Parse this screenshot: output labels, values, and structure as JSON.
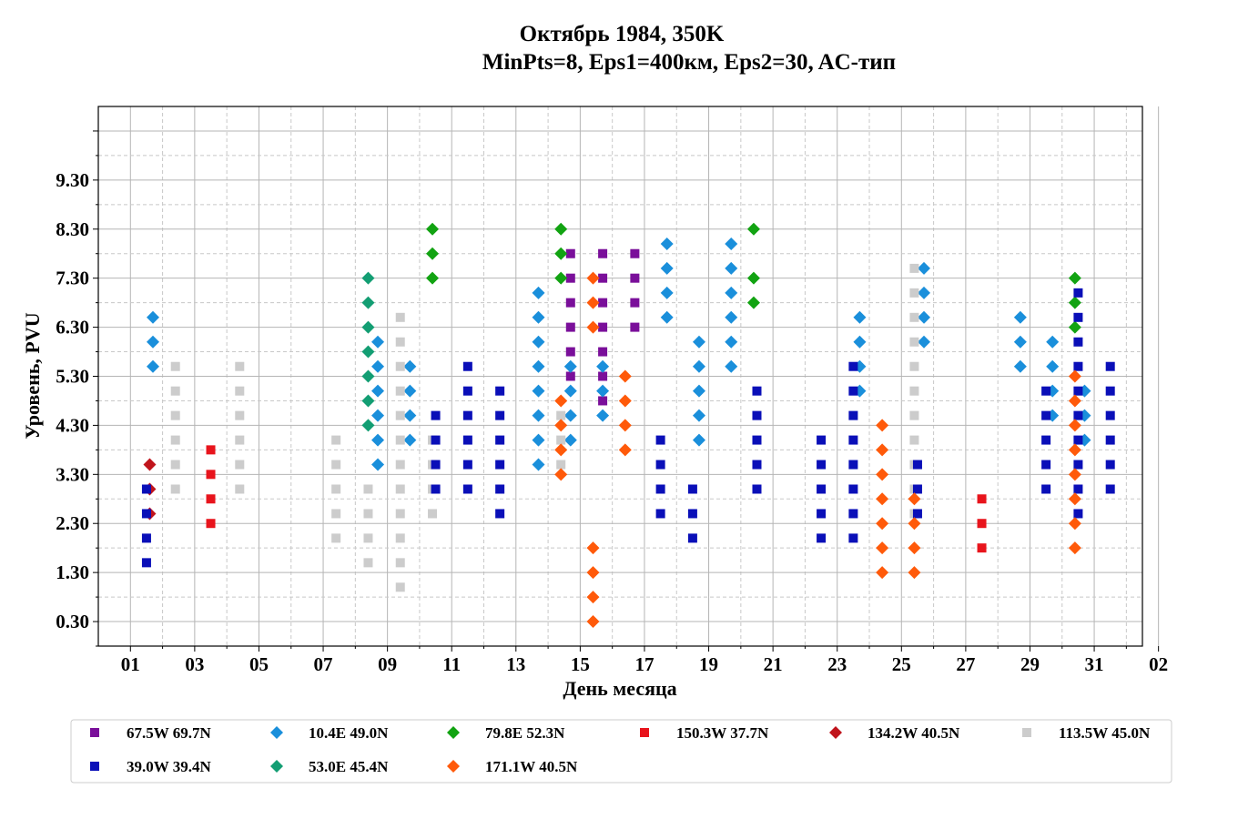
{
  "chart_data": {
    "type": "scatter",
    "title": "Октябрь 1984, 350K",
    "subtitle": "MinPts=8, Eps1=400км, Eps2=30, AC-тип",
    "xlabel": "День месяца",
    "ylabel": "Уровень, PVU",
    "x_ticks": [
      "01",
      "03",
      "05",
      "07",
      "09",
      "11",
      "13",
      "15",
      "17",
      "19",
      "21",
      "23",
      "25",
      "27",
      "29",
      "31",
      "02"
    ],
    "y_ticks": [
      "0.30",
      "1.30",
      "2.30",
      "3.30",
      "4.30",
      "5.30",
      "6.30",
      "7.30",
      "8.30",
      "9.30"
    ],
    "xlim": [
      0,
      32.5
    ],
    "ylim": [
      -0.2,
      10.8
    ],
    "grid": true,
    "legend_position": "bottom",
    "series": [
      {
        "name": "67.5W 69.7N",
        "color": "#7a0f9a",
        "marker": "square",
        "points": [
          [
            14.7,
            5.3
          ],
          [
            14.7,
            5.8
          ],
          [
            14.7,
            6.3
          ],
          [
            14.7,
            6.8
          ],
          [
            14.7,
            7.3
          ],
          [
            14.7,
            7.8
          ],
          [
            15.7,
            4.8
          ],
          [
            15.7,
            5.3
          ],
          [
            15.7,
            5.8
          ],
          [
            15.7,
            6.3
          ],
          [
            15.7,
            6.8
          ],
          [
            15.7,
            7.3
          ],
          [
            15.7,
            7.8
          ],
          [
            16.7,
            6.3
          ],
          [
            16.7,
            6.8
          ],
          [
            16.7,
            7.3
          ],
          [
            16.7,
            7.8
          ]
        ]
      },
      {
        "name": "10.4E 49.0N",
        "color": "#1a8fdb",
        "marker": "diamond",
        "points": [
          [
            1.7,
            5.5
          ],
          [
            1.7,
            6.0
          ],
          [
            1.7,
            6.5
          ],
          [
            8.7,
            3.5
          ],
          [
            8.7,
            4.0
          ],
          [
            8.7,
            4.5
          ],
          [
            8.7,
            5.0
          ],
          [
            8.7,
            5.5
          ],
          [
            8.7,
            6.0
          ],
          [
            9.7,
            4.0
          ],
          [
            9.7,
            4.5
          ],
          [
            9.7,
            5.0
          ],
          [
            9.7,
            5.5
          ],
          [
            13.7,
            3.5
          ],
          [
            13.7,
            4.0
          ],
          [
            13.7,
            4.5
          ],
          [
            13.7,
            5.0
          ],
          [
            13.7,
            5.5
          ],
          [
            13.7,
            6.0
          ],
          [
            13.7,
            6.5
          ],
          [
            13.7,
            7.0
          ],
          [
            14.7,
            4.0
          ],
          [
            14.7,
            4.5
          ],
          [
            14.7,
            5.0
          ],
          [
            14.7,
            5.5
          ],
          [
            15.7,
            4.5
          ],
          [
            15.7,
            5.0
          ],
          [
            15.7,
            5.5
          ],
          [
            17.7,
            6.5
          ],
          [
            17.7,
            7.0
          ],
          [
            17.7,
            7.5
          ],
          [
            17.7,
            8.0
          ],
          [
            18.7,
            4.0
          ],
          [
            18.7,
            4.5
          ],
          [
            18.7,
            5.0
          ],
          [
            18.7,
            5.5
          ],
          [
            18.7,
            6.0
          ],
          [
            19.7,
            5.5
          ],
          [
            19.7,
            6.0
          ],
          [
            19.7,
            6.5
          ],
          [
            19.7,
            7.0
          ],
          [
            19.7,
            7.5
          ],
          [
            19.7,
            8.0
          ],
          [
            23.7,
            5.0
          ],
          [
            23.7,
            5.5
          ],
          [
            23.7,
            6.0
          ],
          [
            23.7,
            6.5
          ],
          [
            25.7,
            6.0
          ],
          [
            25.7,
            6.5
          ],
          [
            25.7,
            7.0
          ],
          [
            25.7,
            7.5
          ],
          [
            28.7,
            5.5
          ],
          [
            28.7,
            6.0
          ],
          [
            28.7,
            6.5
          ],
          [
            29.7,
            4.5
          ],
          [
            29.7,
            5.0
          ],
          [
            29.7,
            5.5
          ],
          [
            29.7,
            6.0
          ],
          [
            30.7,
            4.0
          ],
          [
            30.7,
            4.5
          ],
          [
            30.7,
            5.0
          ]
        ]
      },
      {
        "name": "79.8E 52.3N",
        "color": "#12a312",
        "marker": "diamond",
        "points": [
          [
            10.4,
            7.3
          ],
          [
            10.4,
            7.8
          ],
          [
            10.4,
            8.3
          ],
          [
            14.4,
            7.3
          ],
          [
            14.4,
            7.8
          ],
          [
            14.4,
            8.3
          ],
          [
            20.4,
            6.8
          ],
          [
            20.4,
            7.3
          ],
          [
            20.4,
            8.3
          ],
          [
            30.4,
            6.3
          ],
          [
            30.4,
            6.8
          ],
          [
            30.4,
            7.3
          ]
        ]
      },
      {
        "name": "150.3W 37.7N",
        "color": "#e8141c",
        "marker": "square",
        "points": [
          [
            3.5,
            2.3
          ],
          [
            3.5,
            2.8
          ],
          [
            3.5,
            3.3
          ],
          [
            3.5,
            3.8
          ],
          [
            27.5,
            1.8
          ],
          [
            27.5,
            2.3
          ],
          [
            27.5,
            2.8
          ]
        ]
      },
      {
        "name": "134.2W 40.5N",
        "color": "#c0141c",
        "marker": "diamond",
        "points": [
          [
            1.6,
            2.5
          ],
          [
            1.6,
            3.0
          ],
          [
            1.6,
            3.5
          ]
        ]
      },
      {
        "name": "113.5W 45.0N",
        "color": "#cccccc",
        "marker": "square",
        "points": [
          [
            2.4,
            3.0
          ],
          [
            2.4,
            3.5
          ],
          [
            2.4,
            4.0
          ],
          [
            2.4,
            4.5
          ],
          [
            2.4,
            5.0
          ],
          [
            2.4,
            5.5
          ],
          [
            4.4,
            3.0
          ],
          [
            4.4,
            3.5
          ],
          [
            4.4,
            4.0
          ],
          [
            4.4,
            4.5
          ],
          [
            4.4,
            5.0
          ],
          [
            4.4,
            5.5
          ],
          [
            7.4,
            2.0
          ],
          [
            7.4,
            2.5
          ],
          [
            7.4,
            3.0
          ],
          [
            7.4,
            3.5
          ],
          [
            7.4,
            4.0
          ],
          [
            8.4,
            1.5
          ],
          [
            8.4,
            2.0
          ],
          [
            8.4,
            2.5
          ],
          [
            8.4,
            3.0
          ],
          [
            9.4,
            1.0
          ],
          [
            9.4,
            1.5
          ],
          [
            9.4,
            2.0
          ],
          [
            9.4,
            2.5
          ],
          [
            9.4,
            3.0
          ],
          [
            9.4,
            3.5
          ],
          [
            9.4,
            4.0
          ],
          [
            9.4,
            4.5
          ],
          [
            9.4,
            5.0
          ],
          [
            9.4,
            5.5
          ],
          [
            9.4,
            6.0
          ],
          [
            9.4,
            6.5
          ],
          [
            10.4,
            2.5
          ],
          [
            10.4,
            3.0
          ],
          [
            10.4,
            3.5
          ],
          [
            10.4,
            4.0
          ],
          [
            14.4,
            3.5
          ],
          [
            14.4,
            4.0
          ],
          [
            14.4,
            4.5
          ],
          [
            25.4,
            2.5
          ],
          [
            25.4,
            3.0
          ],
          [
            25.4,
            3.5
          ],
          [
            25.4,
            4.0
          ],
          [
            25.4,
            4.5
          ],
          [
            25.4,
            5.0
          ],
          [
            25.4,
            5.5
          ],
          [
            25.4,
            6.0
          ],
          [
            25.4,
            6.5
          ],
          [
            25.4,
            7.0
          ],
          [
            25.4,
            7.5
          ]
        ]
      },
      {
        "name": "39.0W 39.4N",
        "color": "#0a0fb8",
        "marker": "square",
        "points": [
          [
            1.5,
            1.5
          ],
          [
            1.5,
            2.0
          ],
          [
            1.5,
            2.5
          ],
          [
            1.5,
            3.0
          ],
          [
            10.5,
            3.0
          ],
          [
            10.5,
            3.5
          ],
          [
            10.5,
            4.0
          ],
          [
            10.5,
            4.5
          ],
          [
            11.5,
            3.0
          ],
          [
            11.5,
            3.5
          ],
          [
            11.5,
            4.0
          ],
          [
            11.5,
            4.5
          ],
          [
            11.5,
            5.0
          ],
          [
            11.5,
            5.5
          ],
          [
            12.5,
            2.5
          ],
          [
            12.5,
            3.0
          ],
          [
            12.5,
            3.5
          ],
          [
            12.5,
            4.0
          ],
          [
            12.5,
            4.5
          ],
          [
            12.5,
            5.0
          ],
          [
            17.5,
            2.5
          ],
          [
            17.5,
            3.0
          ],
          [
            17.5,
            3.5
          ],
          [
            17.5,
            4.0
          ],
          [
            18.5,
            2.0
          ],
          [
            18.5,
            2.5
          ],
          [
            18.5,
            3.0
          ],
          [
            20.5,
            3.0
          ],
          [
            20.5,
            3.5
          ],
          [
            20.5,
            4.0
          ],
          [
            20.5,
            4.5
          ],
          [
            20.5,
            5.0
          ],
          [
            22.5,
            2.0
          ],
          [
            22.5,
            2.5
          ],
          [
            22.5,
            3.0
          ],
          [
            22.5,
            3.5
          ],
          [
            22.5,
            4.0
          ],
          [
            23.5,
            2.0
          ],
          [
            23.5,
            2.5
          ],
          [
            23.5,
            3.0
          ],
          [
            23.5,
            3.5
          ],
          [
            23.5,
            4.0
          ],
          [
            23.5,
            4.5
          ],
          [
            23.5,
            5.0
          ],
          [
            23.5,
            5.5
          ],
          [
            25.5,
            2.5
          ],
          [
            25.5,
            3.0
          ],
          [
            25.5,
            3.5
          ],
          [
            29.5,
            3.0
          ],
          [
            29.5,
            3.5
          ],
          [
            29.5,
            4.0
          ],
          [
            29.5,
            4.5
          ],
          [
            29.5,
            5.0
          ],
          [
            30.5,
            2.5
          ],
          [
            30.5,
            3.0
          ],
          [
            30.5,
            3.5
          ],
          [
            30.5,
            4.0
          ],
          [
            30.5,
            4.5
          ],
          [
            30.5,
            5.0
          ],
          [
            30.5,
            5.5
          ],
          [
            30.5,
            6.0
          ],
          [
            30.5,
            6.5
          ],
          [
            30.5,
            7.0
          ],
          [
            31.5,
            3.0
          ],
          [
            31.5,
            3.5
          ],
          [
            31.5,
            4.0
          ],
          [
            31.5,
            4.5
          ],
          [
            31.5,
            5.0
          ],
          [
            31.5,
            5.5
          ]
        ]
      },
      {
        "name": "53.0E 45.4N",
        "color": "#139e73",
        "marker": "diamond",
        "points": [
          [
            8.4,
            4.3
          ],
          [
            8.4,
            4.8
          ],
          [
            8.4,
            5.3
          ],
          [
            8.4,
            5.8
          ],
          [
            8.4,
            6.3
          ],
          [
            8.4,
            6.8
          ],
          [
            8.4,
            7.3
          ]
        ]
      },
      {
        "name": "171.1W 40.5N",
        "color": "#ff5a0a",
        "marker": "diamond",
        "points": [
          [
            14.4,
            3.3
          ],
          [
            14.4,
            3.8
          ],
          [
            14.4,
            4.3
          ],
          [
            14.4,
            4.8
          ],
          [
            15.4,
            0.3
          ],
          [
            15.4,
            0.8
          ],
          [
            15.4,
            1.3
          ],
          [
            15.4,
            1.8
          ],
          [
            15.4,
            6.3
          ],
          [
            15.4,
            6.8
          ],
          [
            15.4,
            7.3
          ],
          [
            16.4,
            3.8
          ],
          [
            16.4,
            4.3
          ],
          [
            16.4,
            4.8
          ],
          [
            16.4,
            5.3
          ],
          [
            24.4,
            1.3
          ],
          [
            24.4,
            1.8
          ],
          [
            24.4,
            2.3
          ],
          [
            24.4,
            2.8
          ],
          [
            24.4,
            3.3
          ],
          [
            24.4,
            3.8
          ],
          [
            24.4,
            4.3
          ],
          [
            25.4,
            1.3
          ],
          [
            25.4,
            1.8
          ],
          [
            25.4,
            2.3
          ],
          [
            25.4,
            2.8
          ],
          [
            30.4,
            1.8
          ],
          [
            30.4,
            2.3
          ],
          [
            30.4,
            2.8
          ],
          [
            30.4,
            3.3
          ],
          [
            30.4,
            3.8
          ],
          [
            30.4,
            4.3
          ],
          [
            30.4,
            4.8
          ],
          [
            30.4,
            5.3
          ]
        ]
      }
    ]
  }
}
